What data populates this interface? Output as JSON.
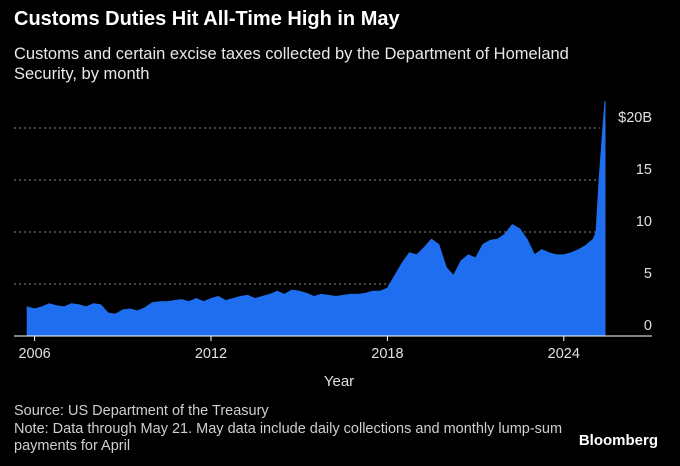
{
  "title": "Customs Duties Hit All-Time High in May",
  "subtitle": "Customs and certain excise taxes collected by the Department of Homeland Security, by month",
  "source": "Source: US Department of the Treasury",
  "note": "Note: Data through May 21. May data include daily collections and monthly lump-sum payments for April",
  "brand": "Bloomberg",
  "colors": {
    "area": "#1f6ef0",
    "background": "#000000",
    "grid": "#8a8a8a",
    "text": "#ffffff"
  },
  "chart_data": {
    "type": "area",
    "xlabel": "Year",
    "ylabel": "",
    "x_ticks": [
      "2006",
      "2012",
      "2018",
      "2024"
    ],
    "y_ticks": [
      "0",
      "5",
      "10",
      "15",
      "$20B"
    ],
    "ylim": [
      0,
      20
    ],
    "xlim": [
      2005.3,
      2027.0
    ],
    "grid": true,
    "series": [
      {
        "x": [
          2005.75,
          2006.0,
          2006.25,
          2006.5,
          2006.75,
          2007.0,
          2007.25,
          2007.5,
          2007.75,
          2008.0,
          2008.25,
          2008.5,
          2008.75,
          2009.0,
          2009.25,
          2009.5,
          2009.75,
          2010.0,
          2010.25,
          2010.5,
          2010.75,
          2011.0,
          2011.25,
          2011.5,
          2011.75,
          2012.0,
          2012.25,
          2012.5,
          2012.75,
          2013.0,
          2013.25,
          2013.5,
          2013.75,
          2014.0,
          2014.25,
          2014.5,
          2014.75,
          2015.0,
          2015.25,
          2015.5,
          2015.75,
          2016.0,
          2016.25,
          2016.5,
          2016.75,
          2017.0,
          2017.25,
          2017.5,
          2017.75,
          2018.0,
          2018.25,
          2018.5,
          2018.75,
          2019.0,
          2019.25,
          2019.5,
          2019.75,
          2020.0,
          2020.25,
          2020.5,
          2020.75,
          2021.0,
          2021.25,
          2021.5,
          2021.75,
          2022.0,
          2022.25,
          2022.5,
          2022.75,
          2023.0,
          2023.25,
          2023.5,
          2023.75,
          2024.0,
          2024.25,
          2024.5,
          2024.75,
          2025.0,
          2025.1,
          2025.2,
          2025.33,
          2025.4
        ],
        "values": [
          2.8,
          2.6,
          2.8,
          3.1,
          2.9,
          2.8,
          3.1,
          3.0,
          2.8,
          3.1,
          3.0,
          2.2,
          2.1,
          2.5,
          2.6,
          2.4,
          2.7,
          3.2,
          3.3,
          3.3,
          3.4,
          3.5,
          3.3,
          3.6,
          3.3,
          3.6,
          3.8,
          3.4,
          3.6,
          3.8,
          3.9,
          3.6,
          3.8,
          4.0,
          4.3,
          4.0,
          4.4,
          4.3,
          4.1,
          3.8,
          4.0,
          3.9,
          3.8,
          3.9,
          4.0,
          4.0,
          4.1,
          4.3,
          4.3,
          4.6,
          5.8,
          7.0,
          8.0,
          7.8,
          8.5,
          9.3,
          8.8,
          6.6,
          5.8,
          7.2,
          7.8,
          7.5,
          8.8,
          9.2,
          9.3,
          9.8,
          10.7,
          10.3,
          9.3,
          7.8,
          8.3,
          8.0,
          7.8,
          7.8,
          8.0,
          8.3,
          8.7,
          9.3,
          10.0,
          15.0,
          20.0,
          22.6
        ]
      }
    ]
  }
}
